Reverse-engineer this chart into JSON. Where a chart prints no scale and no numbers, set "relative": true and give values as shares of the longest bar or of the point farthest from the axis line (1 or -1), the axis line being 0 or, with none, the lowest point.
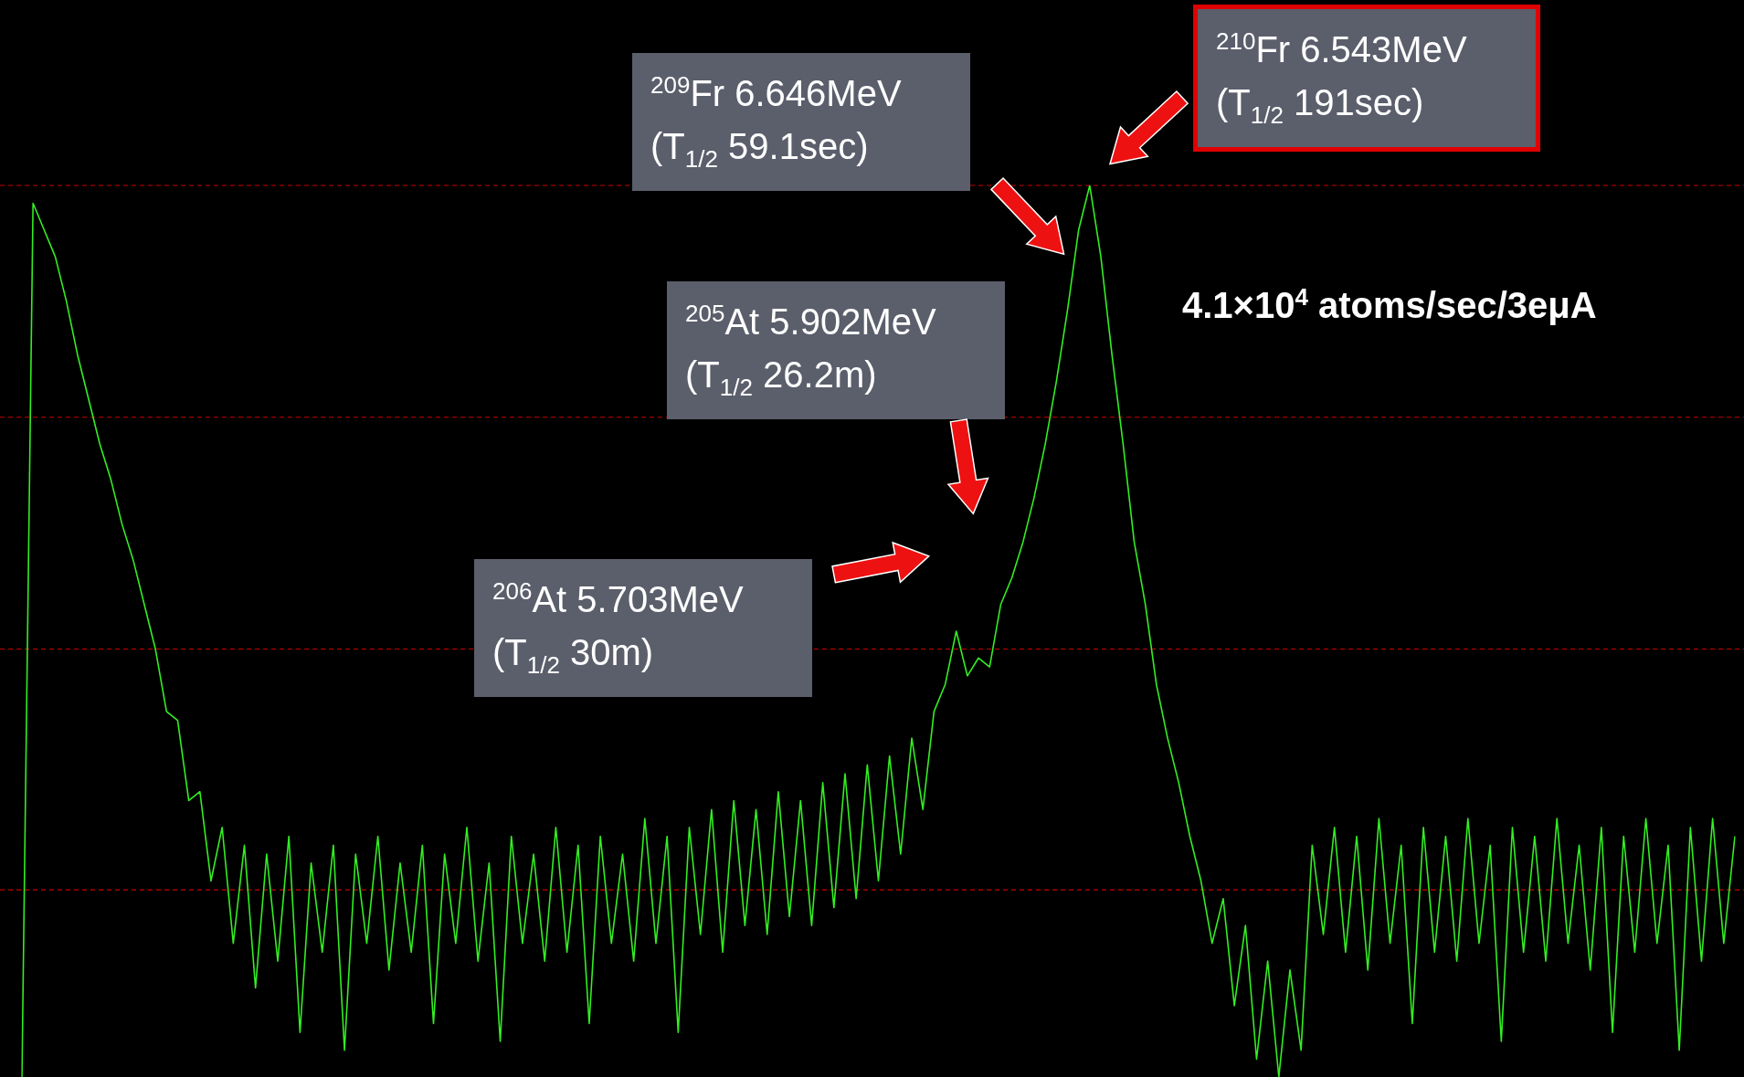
{
  "chart_data": {
    "type": "line",
    "relative": true,
    "color": "#33ee22",
    "categories": [
      null,
      null,
      null,
      null,
      null,
      null,
      null,
      null,
      null,
      null,
      null,
      null,
      null,
      null,
      null,
      null,
      null,
      null,
      null,
      null,
      null,
      null,
      null,
      null,
      null,
      null,
      null,
      null,
      null,
      null,
      null,
      null,
      null,
      null,
      null,
      null,
      null,
      null,
      null,
      null,
      null,
      null,
      null,
      null,
      null,
      null,
      null,
      null,
      null,
      null,
      null,
      null,
      null,
      null,
      null,
      null,
      null,
      null,
      null,
      null,
      null,
      null,
      null,
      null,
      null,
      null,
      null,
      null,
      null,
      null,
      null,
      null,
      null,
      null,
      null,
      null,
      null,
      null,
      null,
      null,
      null,
      null,
      null,
      null,
      null,
      null,
      null,
      null,
      null,
      null,
      null,
      null,
      null,
      null,
      null,
      null,
      null,
      null,
      null,
      null,
      null,
      null,
      null,
      null,
      null,
      null,
      null,
      null,
      null,
      null,
      null,
      null,
      null,
      null,
      null,
      null,
      null,
      null,
      null,
      null,
      null,
      null,
      null,
      null,
      null,
      null,
      null,
      null,
      null,
      null,
      null,
      null,
      null,
      null,
      null,
      null,
      null,
      null,
      null,
      null,
      null,
      null,
      null,
      null,
      null,
      null,
      null,
      null,
      null,
      null,
      null,
      null,
      null,
      null,
      null
    ],
    "values": [
      0,
      0.98,
      0.95,
      0.92,
      0.87,
      0.81,
      0.76,
      0.71,
      0.67,
      0.62,
      0.58,
      0.53,
      0.48,
      0.41,
      0.4,
      0.31,
      0.32,
      0.22,
      0.28,
      0.15,
      0.26,
      0.1,
      0.25,
      0.13,
      0.27,
      0.05,
      0.24,
      0.14,
      0.26,
      0.03,
      0.25,
      0.15,
      0.27,
      0.12,
      0.24,
      0.14,
      0.26,
      0.06,
      0.25,
      0.15,
      0.28,
      0.13,
      0.24,
      0.04,
      0.27,
      0.15,
      0.25,
      0.13,
      0.28,
      0.14,
      0.26,
      0.06,
      0.27,
      0.15,
      0.25,
      0.13,
      0.29,
      0.15,
      0.27,
      0.05,
      0.28,
      0.16,
      0.3,
      0.14,
      0.31,
      0.17,
      0.3,
      0.16,
      0.32,
      0.18,
      0.31,
      0.17,
      0.33,
      0.19,
      0.34,
      0.2,
      0.35,
      0.22,
      0.36,
      0.25,
      0.38,
      0.3,
      0.41,
      0.44,
      0.5,
      0.45,
      0.47,
      0.46,
      0.53,
      0.56,
      0.6,
      0.65,
      0.71,
      0.78,
      0.86,
      0.95,
      1.0,
      0.92,
      0.81,
      0.71,
      0.6,
      0.53,
      0.44,
      0.38,
      0.33,
      0.27,
      0.22,
      0.15,
      0.2,
      0.08,
      0.17,
      0.02,
      0.13,
      0.0,
      0.12,
      0.03,
      0.26,
      0.16,
      0.28,
      0.14,
      0.27,
      0.12,
      0.29,
      0.15,
      0.26,
      0.06,
      0.28,
      0.14,
      0.27,
      0.13,
      0.29,
      0.15,
      0.26,
      0.04,
      0.28,
      0.14,
      0.27,
      0.13,
      0.29,
      0.15,
      0.26,
      0.12,
      0.28,
      0.05,
      0.27,
      0.14,
      0.29,
      0.15,
      0.26,
      0.03,
      0.28,
      0.13,
      0.29,
      0.15,
      0.27
    ],
    "ref_lines": [
      {
        "axis": "y",
        "value": 1.0,
        "color": "#cc0000",
        "line_style": "dashed"
      },
      {
        "axis": "y",
        "value": 0.74,
        "color": "#cc0000",
        "line_style": "dashed"
      },
      {
        "axis": "y",
        "value": 0.48,
        "color": "#cc0000",
        "line_style": "dashed"
      },
      {
        "axis": "y",
        "value": 0.21,
        "color": "#cc0000",
        "line_style": "dashed"
      }
    ],
    "annotations": [
      "$^{210}$Fr 6.543MeV\n(T$_{1/2}$ 191sec)",
      "$^{209}$Fr 6.646MeV\n(T$_{1/2}$ 59.1sec)",
      "$^{205}$At 5.902MeV\n(T$_{1/2}$ 26.2m)",
      "$^{206}$At 5.703MeV\n(T$_{1/2}$ 30m)",
      "4.1×10$^{4}$ atoms/sec/3eμA"
    ]
  }
}
